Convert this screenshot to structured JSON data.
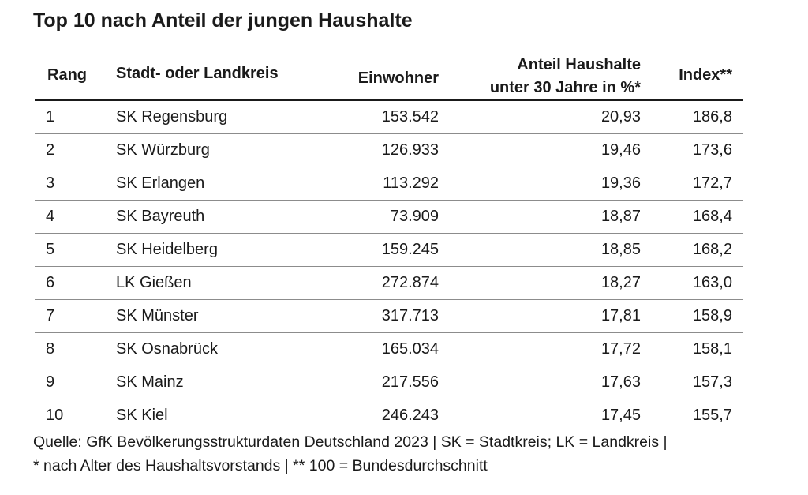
{
  "title": "Top 10 nach Anteil der jungen Haushalte",
  "table": {
    "headers": {
      "rang": "Rang",
      "kreis": "Stadt- oder Landkreis",
      "einwohner": "Einwohner",
      "anteil_line1": "Anteil Haushalte",
      "anteil_line2": "unter 30 Jahre in %*",
      "index": "Index**"
    },
    "rows": [
      {
        "rang": "1",
        "kreis": "SK Regensburg",
        "einwohner": "153.542",
        "anteil": "20,93",
        "index": "186,8"
      },
      {
        "rang": "2",
        "kreis": "SK Würzburg",
        "einwohner": "126.933",
        "anteil": "19,46",
        "index": "173,6"
      },
      {
        "rang": "3",
        "kreis": "SK Erlangen",
        "einwohner": "113.292",
        "anteil": "19,36",
        "index": "172,7"
      },
      {
        "rang": "4",
        "kreis": "SK Bayreuth",
        "einwohner": "73.909",
        "anteil": "18,87",
        "index": "168,4"
      },
      {
        "rang": "5",
        "kreis": "SK Heidelberg",
        "einwohner": "159.245",
        "anteil": "18,85",
        "index": "168,2"
      },
      {
        "rang": "6",
        "kreis": "LK Gießen",
        "einwohner": "272.874",
        "anteil": "18,27",
        "index": "163,0"
      },
      {
        "rang": "7",
        "kreis": "SK Münster",
        "einwohner": "317.713",
        "anteil": "17,81",
        "index": "158,9"
      },
      {
        "rang": "8",
        "kreis": "SK Osnabrück",
        "einwohner": "165.034",
        "anteil": "17,72",
        "index": "158,1"
      },
      {
        "rang": "9",
        "kreis": "SK Mainz",
        "einwohner": "217.556",
        "anteil": "17,63",
        "index": "157,3"
      },
      {
        "rang": "10",
        "kreis": "SK Kiel",
        "einwohner": "246.243",
        "anteil": "17,45",
        "index": "155,7"
      }
    ]
  },
  "footnote": {
    "line1": "Quelle: GfK Bevölkerungsstrukturdaten Deutschland 2023 | SK = Stadtkreis; LK = Landkreis |",
    "line2": "* nach Alter des Haushaltsvorstands | ** 100 = Bundesdurchschnitt"
  }
}
